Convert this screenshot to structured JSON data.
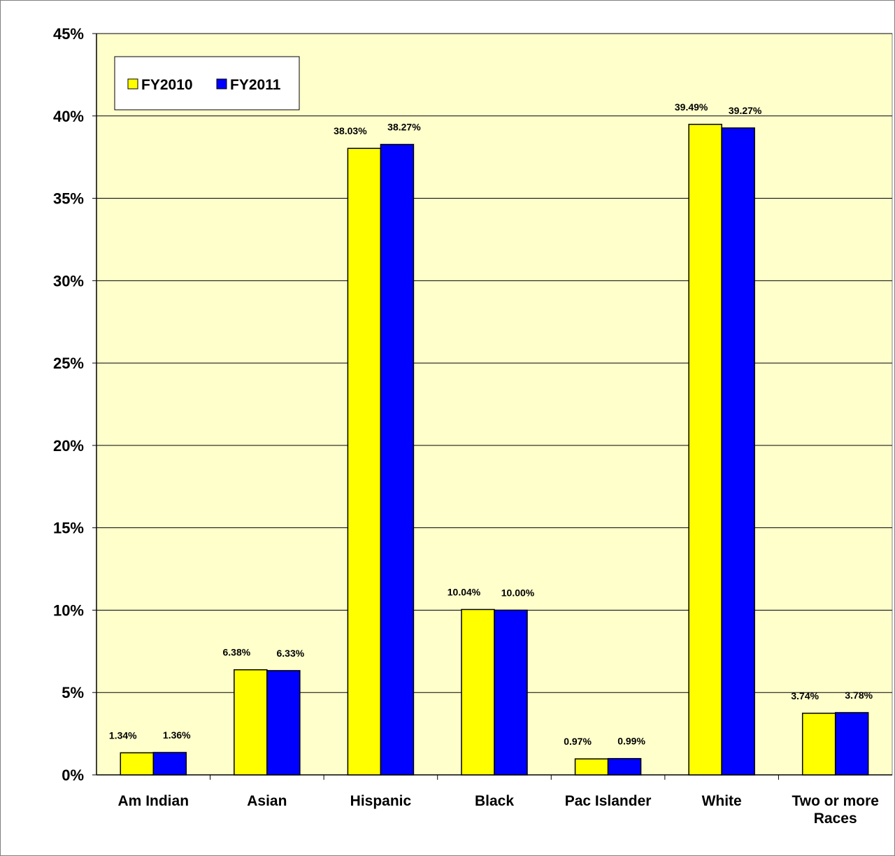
{
  "chart_data": {
    "type": "bar",
    "title": "",
    "xlabel": "",
    "ylabel": "",
    "categories": [
      "Am Indian",
      "Asian",
      "Hispanic",
      "Black",
      "Pac Islander",
      "White",
      "Two or more Races"
    ],
    "category_lines": [
      [
        "Am Indian"
      ],
      [
        "Asian"
      ],
      [
        "Hispanic"
      ],
      [
        "Black"
      ],
      [
        "Pac Islander"
      ],
      [
        "White"
      ],
      [
        "Two or more",
        "Races"
      ]
    ],
    "series": [
      {
        "name": "FY2010",
        "color": "#FFFF00",
        "values": [
          1.34,
          6.38,
          38.03,
          10.04,
          0.97,
          39.49,
          3.74
        ],
        "labels": [
          "1.34%",
          "6.38%",
          "38.03%",
          "10.04%",
          "0.97%",
          "39.49%",
          "3.74%"
        ]
      },
      {
        "name": "FY2011",
        "color": "#0000FF",
        "values": [
          1.36,
          6.33,
          38.27,
          10.0,
          0.99,
          39.27,
          3.78
        ],
        "labels": [
          "1.36%",
          "6.33%",
          "38.27%",
          "10.00%",
          "0.99%",
          "39.27%",
          "3.78%"
        ]
      }
    ],
    "ylim": [
      0,
      45
    ],
    "yticks": [
      0,
      5,
      10,
      15,
      20,
      25,
      30,
      35,
      40,
      45
    ],
    "ytick_labels": [
      "0%",
      "5%",
      "10%",
      "15%",
      "20%",
      "25%",
      "30%",
      "35%",
      "40%",
      "45%"
    ],
    "grid": true,
    "legend_position": "top-left",
    "plot_background": "#FFFFCC"
  }
}
